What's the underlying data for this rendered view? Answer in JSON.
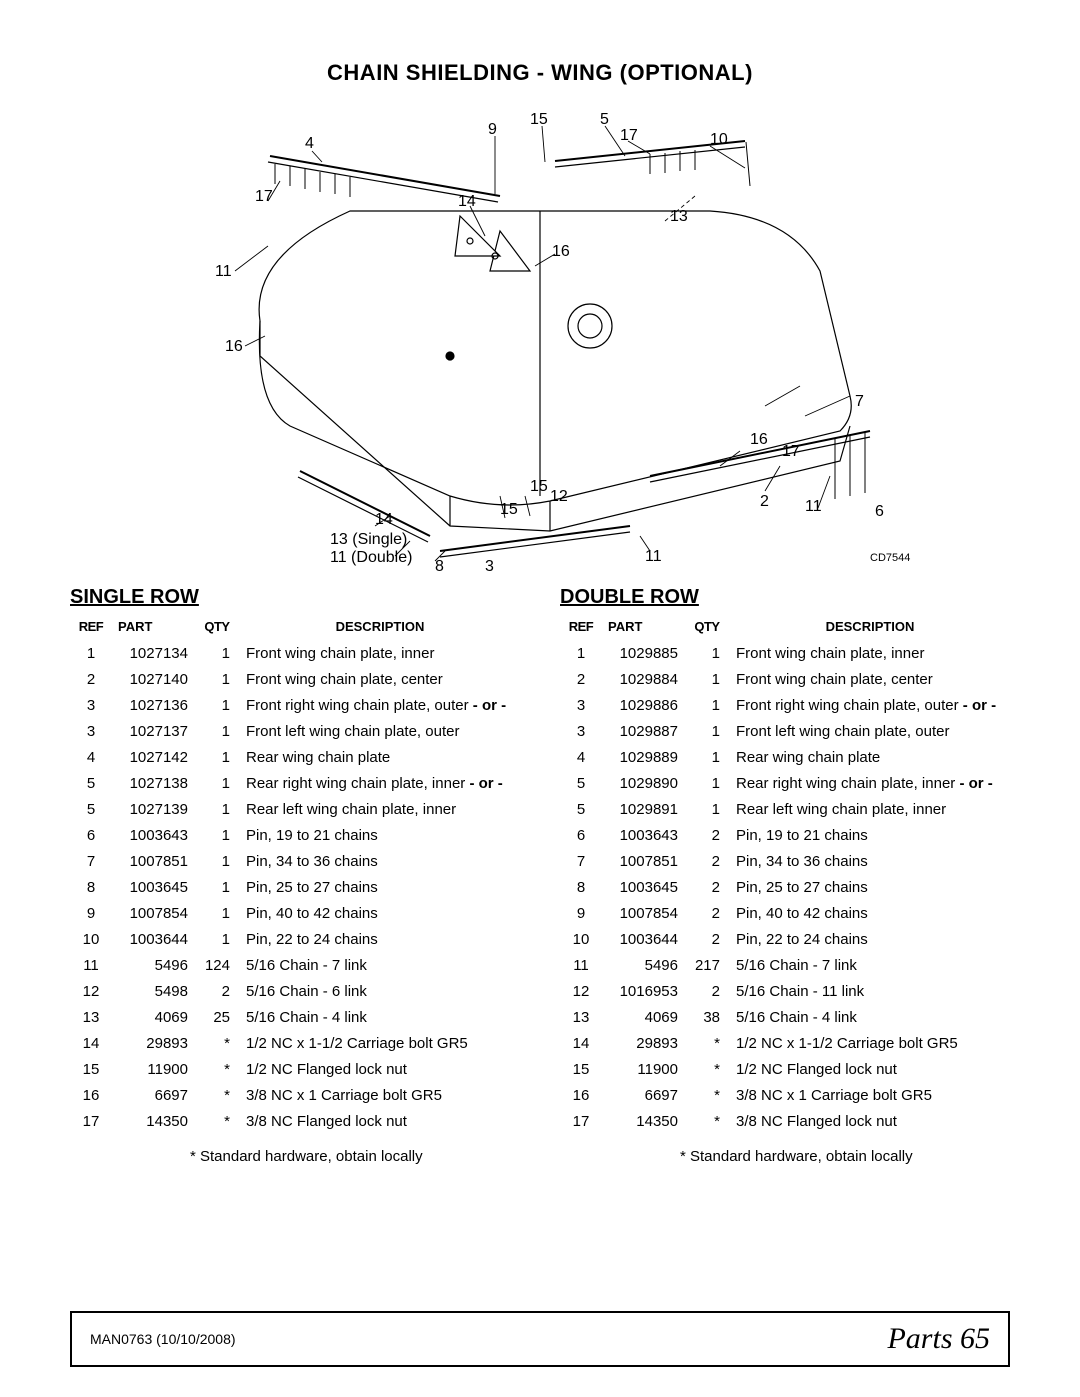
{
  "title": "CHAIN SHIELDING - WING (OPTIONAL)",
  "diagram": {
    "cd_label": "CD7544",
    "callouts": {
      "c4": "4",
      "c9": "9",
      "c15a": "15",
      "c5": "5",
      "c17a": "17",
      "c10": "10",
      "c17b": "17",
      "c13a": "13",
      "c14a": "14",
      "c16a": "16",
      "c11a": "11",
      "c16b": "16",
      "c7": "7",
      "c16c": "16",
      "c17c": "17",
      "c11b": "11",
      "c2": "2",
      "c6": "6",
      "c15b": "15",
      "c12": "12",
      "c15c": "15",
      "c14b": "14",
      "c13single": "13 (Single)",
      "c11double": "11 (Double)",
      "c8": "8",
      "c3": "3",
      "c11c": "11"
    }
  },
  "single": {
    "title": "SINGLE ROW",
    "headers": {
      "ref": "REF",
      "part": "PART",
      "qty": "QTY",
      "desc": "DESCRIPTION"
    },
    "rows": [
      {
        "ref": "1",
        "part": "1027134",
        "qty": "1",
        "desc": "Front wing chain plate, inner",
        "bold": ""
      },
      {
        "ref": "2",
        "part": "1027140",
        "qty": "1",
        "desc": "Front wing chain plate, center",
        "bold": ""
      },
      {
        "ref": "3",
        "part": "1027136",
        "qty": "1",
        "desc": "Front right wing chain plate, outer ",
        "bold": "- or -"
      },
      {
        "ref": "3",
        "part": "1027137",
        "qty": "1",
        "desc": "Front left wing chain plate, outer",
        "bold": ""
      },
      {
        "ref": "4",
        "part": "1027142",
        "qty": "1",
        "desc": "Rear wing chain plate",
        "bold": ""
      },
      {
        "ref": "5",
        "part": "1027138",
        "qty": "1",
        "desc": "Rear right wing chain plate, inner ",
        "bold": "- or -"
      },
      {
        "ref": "5",
        "part": "1027139",
        "qty": "1",
        "desc": "Rear left wing chain plate, inner",
        "bold": ""
      },
      {
        "ref": "6",
        "part": "1003643",
        "qty": "1",
        "desc": "Pin, 19 to 21 chains",
        "bold": ""
      },
      {
        "ref": "7",
        "part": "1007851",
        "qty": "1",
        "desc": "Pin, 34 to 36 chains",
        "bold": ""
      },
      {
        "ref": "8",
        "part": "1003645",
        "qty": "1",
        "desc": "Pin, 25 to 27 chains",
        "bold": ""
      },
      {
        "ref": "9",
        "part": "1007854",
        "qty": "1",
        "desc": "Pin, 40 to 42 chains",
        "bold": ""
      },
      {
        "ref": "10",
        "part": "1003644",
        "qty": "1",
        "desc": "Pin, 22 to 24 chains",
        "bold": ""
      },
      {
        "ref": "11",
        "part": "5496",
        "qty": "124",
        "desc": "5/16 Chain - 7 link",
        "bold": ""
      },
      {
        "ref": "12",
        "part": "5498",
        "qty": "2",
        "desc": "5/16 Chain - 6 link",
        "bold": ""
      },
      {
        "ref": "13",
        "part": "4069",
        "qty": "25",
        "desc": "5/16 Chain - 4 link",
        "bold": ""
      },
      {
        "ref": "14",
        "part": "29893",
        "qty": "*",
        "desc": "1/2 NC x 1-1/2 Carriage bolt GR5",
        "bold": ""
      },
      {
        "ref": "15",
        "part": "11900",
        "qty": "*",
        "desc": "1/2 NC Flanged lock nut",
        "bold": ""
      },
      {
        "ref": "16",
        "part": "6697",
        "qty": "*",
        "desc": "3/8 NC x 1 Carriage bolt GR5",
        "bold": ""
      },
      {
        "ref": "17",
        "part": "14350",
        "qty": "*",
        "desc": "3/8 NC Flanged lock nut",
        "bold": ""
      }
    ],
    "note": "*  Standard hardware, obtain locally"
  },
  "double": {
    "title": "DOUBLE ROW",
    "headers": {
      "ref": "REF",
      "part": "PART",
      "qty": "QTY",
      "desc": "DESCRIPTION"
    },
    "rows": [
      {
        "ref": "1",
        "part": "1029885",
        "qty": "1",
        "desc": "Front wing chain plate, inner",
        "bold": ""
      },
      {
        "ref": "2",
        "part": "1029884",
        "qty": "1",
        "desc": "Front wing chain plate, center",
        "bold": ""
      },
      {
        "ref": "3",
        "part": "1029886",
        "qty": "1",
        "desc": "Front right wing chain plate, outer ",
        "bold": "- or -"
      },
      {
        "ref": "3",
        "part": "1029887",
        "qty": "1",
        "desc": "Front left wing chain plate, outer",
        "bold": ""
      },
      {
        "ref": "4",
        "part": "1029889",
        "qty": "1",
        "desc": "Rear wing chain plate",
        "bold": ""
      },
      {
        "ref": "5",
        "part": "1029890",
        "qty": "1",
        "desc": "Rear right wing chain plate, inner ",
        "bold": "- or -"
      },
      {
        "ref": "5",
        "part": "1029891",
        "qty": "1",
        "desc": "Rear left wing chain plate, inner",
        "bold": ""
      },
      {
        "ref": "6",
        "part": "1003643",
        "qty": "2",
        "desc": "Pin, 19 to 21 chains",
        "bold": ""
      },
      {
        "ref": "7",
        "part": "1007851",
        "qty": "2",
        "desc": "Pin, 34 to 36 chains",
        "bold": ""
      },
      {
        "ref": "8",
        "part": "1003645",
        "qty": "2",
        "desc": "Pin, 25 to 27 chains",
        "bold": ""
      },
      {
        "ref": "9",
        "part": "1007854",
        "qty": "2",
        "desc": "Pin, 40 to 42 chains",
        "bold": ""
      },
      {
        "ref": "10",
        "part": "1003644",
        "qty": "2",
        "desc": "Pin, 22 to 24 chains",
        "bold": ""
      },
      {
        "ref": "11",
        "part": "5496",
        "qty": "217",
        "desc": "5/16 Chain - 7 link",
        "bold": ""
      },
      {
        "ref": "12",
        "part": "1016953",
        "qty": "2",
        "desc": "5/16 Chain - 11 link",
        "bold": ""
      },
      {
        "ref": "13",
        "part": "4069",
        "qty": "38",
        "desc": "5/16 Chain - 4 link",
        "bold": ""
      },
      {
        "ref": "14",
        "part": "29893",
        "qty": "*",
        "desc": "1/2 NC x 1-1/2 Carriage bolt GR5",
        "bold": ""
      },
      {
        "ref": "15",
        "part": "11900",
        "qty": "*",
        "desc": "1/2 NC Flanged lock nut",
        "bold": ""
      },
      {
        "ref": "16",
        "part": "6697",
        "qty": "*",
        "desc": "3/8 NC x 1 Carriage bolt GR5",
        "bold": ""
      },
      {
        "ref": "17",
        "part": "14350",
        "qty": "*",
        "desc": "3/8 NC Flanged lock nut",
        "bold": ""
      }
    ],
    "note": "*  Standard hardware, obtain locally"
  },
  "footer": {
    "left": "MAN0763 (10/10/2008)",
    "right_label": "Parts ",
    "right_num": "65"
  }
}
